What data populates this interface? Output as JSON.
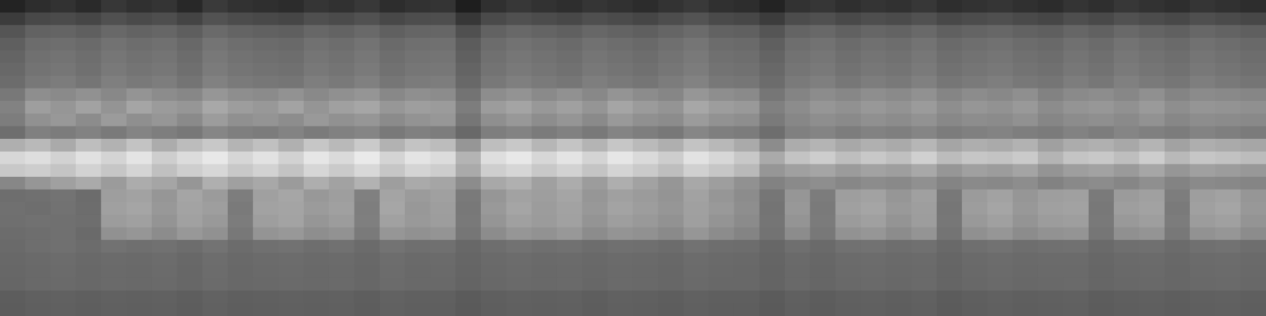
{
  "chart_data": {
    "type": "heatmap",
    "tick_labels": false,
    "color_range": [
      0,
      255
    ],
    "cells": [
      [
        35,
        45,
        50,
        42,
        55,
        48,
        52,
        40,
        58,
        50,
        47,
        44,
        53,
        49,
        56,
        45,
        50,
        52,
        30,
        48,
        55,
        50,
        46,
        53,
        49,
        44,
        51,
        57,
        48,
        45,
        35,
        50,
        54,
        47,
        52,
        49,
        55,
        46,
        50,
        53,
        48,
        44,
        52,
        47,
        55,
        50,
        46,
        53,
        49,
        45
      ],
      [
        60,
        72,
        75,
        70,
        80,
        74,
        78,
        68,
        82,
        76,
        73,
        70,
        79,
        75,
        81,
        72,
        77,
        78,
        55,
        74,
        80,
        76,
        72,
        79,
        75,
        70,
        77,
        83,
        74,
        71,
        60,
        76,
        80,
        73,
        78,
        75,
        81,
        72,
        76,
        79,
        74,
        70,
        78,
        73,
        81,
        76,
        72,
        79,
        75,
        71
      ],
      [
        85,
        98,
        100,
        95,
        104,
        99,
        102,
        94,
        106,
        100,
        97,
        95,
        103,
        99,
        105,
        96,
        101,
        102,
        80,
        98,
        104,
        100,
        96,
        103,
        99,
        95,
        101,
        107,
        98,
        96,
        85,
        100,
        104,
        97,
        102,
        99,
        105,
        96,
        100,
        103,
        98,
        95,
        102,
        97,
        105,
        100,
        96,
        103,
        99,
        95
      ],
      [
        95,
        108,
        110,
        106,
        114,
        109,
        112,
        104,
        116,
        110,
        107,
        105,
        113,
        109,
        115,
        106,
        111,
        112,
        92,
        108,
        114,
        110,
        106,
        113,
        109,
        105,
        111,
        117,
        108,
        106,
        95,
        110,
        114,
        107,
        112,
        109,
        115,
        106,
        110,
        113,
        108,
        105,
        112,
        107,
        115,
        110,
        106,
        113,
        109,
        105
      ],
      [
        100,
        112,
        115,
        110,
        118,
        113,
        116,
        108,
        120,
        114,
        111,
        109,
        117,
        113,
        119,
        110,
        115,
        116,
        96,
        112,
        118,
        114,
        110,
        117,
        113,
        109,
        115,
        121,
        112,
        110,
        100,
        114,
        118,
        111,
        116,
        113,
        119,
        110,
        114,
        117,
        112,
        109,
        116,
        111,
        119,
        114,
        110,
        117,
        113,
        109
      ],
      [
        104,
        115,
        118,
        112,
        121,
        116,
        119,
        111,
        123,
        117,
        114,
        112,
        120,
        116,
        122,
        113,
        118,
        119,
        100,
        115,
        121,
        117,
        113,
        120,
        116,
        112,
        118,
        124,
        115,
        113,
        104,
        117,
        121,
        114,
        119,
        116,
        122,
        113,
        117,
        120,
        115,
        112,
        119,
        114,
        122,
        117,
        113,
        120,
        116,
        112
      ],
      [
        108,
        120,
        124,
        117,
        127,
        121,
        125,
        116,
        129,
        122,
        119,
        117,
        126,
        121,
        128,
        118,
        123,
        125,
        104,
        120,
        127,
        122,
        118,
        126,
        121,
        117,
        124,
        130,
        120,
        118,
        108,
        122,
        127,
        119,
        125,
        121,
        128,
        118,
        122,
        126,
        120,
        117,
        125,
        119,
        128,
        122,
        118,
        126,
        121,
        117
      ],
      [
        120,
        142,
        138,
        145,
        136,
        148,
        140,
        135,
        150,
        142,
        139,
        146,
        137,
        144,
        149,
        136,
        143,
        140,
        115,
        141,
        147,
        138,
        145,
        136,
        148,
        140,
        134,
        150,
        142,
        138,
        118,
        132,
        140,
        135,
        142,
        138,
        145,
        133,
        140,
        136,
        143,
        130,
        138,
        141,
        135,
        144,
        132,
        139,
        137,
        134
      ],
      [
        130,
        158,
        150,
        162,
        148,
        165,
        155,
        150,
        168,
        157,
        152,
        163,
        149,
        160,
        166,
        151,
        158,
        155,
        125,
        156,
        164,
        152,
        160,
        149,
        165,
        155,
        148,
        167,
        157,
        153,
        128,
        140,
        150,
        145,
        152,
        147,
        155,
        142,
        150,
        146,
        153,
        140,
        148,
        151,
        145,
        154,
        142,
        149,
        147,
        144
      ],
      [
        125,
        145,
        152,
        140,
        155,
        143,
        150,
        138,
        156,
        144,
        148,
        141,
        153,
        145,
        150,
        139,
        147,
        151,
        118,
        143,
        152,
        141,
        149,
        138,
        153,
        144,
        140,
        155,
        146,
        142,
        122,
        135,
        142,
        138,
        144,
        140,
        146,
        136,
        141,
        139,
        145,
        134,
        140,
        143,
        138,
        146,
        135,
        141,
        139,
        137
      ],
      [
        110,
        128,
        124,
        130,
        122,
        132,
        126,
        120,
        134,
        127,
        124,
        131,
        123,
        129,
        133,
        121,
        128,
        125,
        105,
        126,
        131,
        123,
        129,
        121,
        132,
        126,
        120,
        134,
        127,
        124,
        110,
        128,
        132,
        125,
        130,
        127,
        133,
        124,
        128,
        131,
        126,
        123,
        130,
        125,
        133,
        128,
        124,
        131,
        127,
        123
      ],
      [
        175,
        185,
        170,
        190,
        178,
        195,
        172,
        188,
        200,
        180,
        192,
        176,
        198,
        185,
        202,
        178,
        195,
        188,
        150,
        190,
        200,
        182,
        196,
        180,
        198,
        186,
        175,
        195,
        184,
        170,
        140,
        172,
        180,
        168,
        176,
        170,
        182,
        165,
        174,
        170,
        178,
        160,
        172,
        176,
        168,
        180,
        162,
        174,
        170,
        166
      ],
      [
        215,
        222,
        210,
        225,
        212,
        228,
        206,
        220,
        232,
        214,
        226,
        210,
        230,
        218,
        234,
        212,
        228,
        220,
        180,
        222,
        232,
        215,
        228,
        212,
        230,
        218,
        205,
        226,
        215,
        200,
        170,
        195,
        205,
        190,
        200,
        192,
        208,
        188,
        198,
        195,
        202,
        180,
        196,
        200,
        190,
        205,
        185,
        198,
        194,
        188
      ],
      [
        200,
        205,
        196,
        210,
        198,
        212,
        192,
        206,
        215,
        200,
        210,
        195,
        214,
        202,
        216,
        198,
        212,
        205,
        170,
        206,
        214,
        200,
        210,
        196,
        212,
        202,
        190,
        208,
        198,
        185,
        150,
        160,
        165,
        155,
        162,
        158,
        168,
        150,
        160,
        156,
        164,
        148,
        158,
        162,
        154,
        166,
        150,
        160,
        156,
        152
      ],
      [
        135,
        150,
        160,
        170,
        155,
        172,
        165,
        150,
        175,
        160,
        168,
        155,
        174,
        162,
        178,
        158,
        170,
        165,
        140,
        168,
        176,
        160,
        172,
        156,
        174,
        162,
        150,
        168,
        158,
        145,
        130,
        138,
        142,
        135,
        140,
        137,
        144,
        132,
        138,
        136,
        141,
        130,
        137,
        140,
        134,
        143,
        131,
        138,
        136,
        133
      ],
      [
        110,
        112,
        115,
        108,
        158,
        162,
        150,
        165,
        155,
        125,
        160,
        166,
        152,
        158,
        128,
        164,
        155,
        160,
        122,
        150,
        162,
        158,
        165,
        150,
        160,
        155,
        148,
        162,
        150,
        140,
        118,
        150,
        124,
        158,
        162,
        150,
        160,
        120,
        155,
        162,
        150,
        158,
        160,
        122,
        155,
        160,
        125,
        158,
        162,
        150
      ],
      [
        112,
        110,
        114,
        109,
        160,
        165,
        152,
        163,
        158,
        122,
        162,
        164,
        155,
        160,
        126,
        166,
        152,
        158,
        120,
        153,
        165,
        156,
        162,
        152,
        163,
        157,
        150,
        160,
        153,
        142,
        116,
        152,
        122,
        160,
        165,
        153,
        158,
        118,
        157,
        165,
        152,
        160,
        162,
        120,
        158,
        162,
        122,
        160,
        165,
        152
      ],
      [
        111,
        113,
        112,
        110,
        156,
        160,
        148,
        161,
        153,
        124,
        158,
        163,
        150,
        156,
        127,
        161,
        153,
        157,
        121,
        149,
        160,
        155,
        161,
        148,
        158,
        153,
        146,
        159,
        148,
        139,
        117,
        148,
        123,
        155,
        160,
        148,
        157,
        119,
        153,
        160,
        148,
        156,
        158,
        121,
        153,
        158,
        124,
        156,
        160,
        148
      ],
      [
        108,
        110,
        112,
        106,
        145,
        150,
        140,
        152,
        145,
        120,
        148,
        152,
        142,
        146,
        122,
        150,
        145,
        148,
        118,
        140,
        150,
        146,
        152,
        140,
        148,
        145,
        138,
        150,
        140,
        132,
        115,
        140,
        120,
        146,
        150,
        140,
        148,
        116,
        144,
        150,
        140,
        146,
        148,
        118,
        144,
        148,
        120,
        146,
        150,
        140
      ],
      [
        106,
        110,
        112,
        108,
        114,
        111,
        113,
        109,
        115,
        108,
        112,
        114,
        110,
        113,
        107,
        115,
        111,
        112,
        104,
        110,
        114,
        111,
        113,
        109,
        112,
        111,
        108,
        114,
        110,
        109,
        103,
        111,
        106,
        113,
        114,
        110,
        112,
        105,
        111,
        114,
        110,
        112,
        113,
        106,
        111,
        112,
        107,
        112,
        114,
        110
      ],
      [
        104,
        106,
        108,
        105,
        107,
        106,
        108,
        104,
        109,
        105,
        107,
        108,
        106,
        107,
        104,
        109,
        106,
        107,
        102,
        106,
        108,
        106,
        107,
        105,
        107,
        106,
        104,
        108,
        106,
        105,
        101,
        106,
        103,
        107,
        108,
        106,
        107,
        102,
        106,
        108,
        106,
        107,
        107,
        103,
        106,
        107,
        104,
        107,
        108,
        106
      ],
      [
        103,
        105,
        107,
        104,
        106,
        105,
        107,
        103,
        108,
        104,
        106,
        107,
        105,
        106,
        103,
        108,
        105,
        106,
        101,
        105,
        107,
        105,
        106,
        104,
        106,
        105,
        103,
        107,
        105,
        104,
        100,
        105,
        102,
        106,
        107,
        105,
        106,
        101,
        105,
        107,
        105,
        106,
        106,
        102,
        105,
        106,
        103,
        106,
        107,
        105
      ],
      [
        102,
        105,
        106,
        104,
        106,
        105,
        106,
        103,
        107,
        104,
        105,
        106,
        105,
        106,
        103,
        107,
        105,
        105,
        100,
        104,
        106,
        105,
        106,
        103,
        106,
        105,
        103,
        106,
        104,
        104,
        100,
        105,
        102,
        105,
        106,
        104,
        106,
        101,
        104,
        106,
        104,
        105,
        106,
        102,
        104,
        105,
        103,
        105,
        106,
        104
      ],
      [
        93,
        96,
        97,
        95,
        97,
        96,
        97,
        94,
        98,
        95,
        96,
        97,
        96,
        97,
        94,
        98,
        96,
        96,
        91,
        95,
        97,
        96,
        97,
        94,
        97,
        96,
        94,
        97,
        95,
        95,
        91,
        96,
        93,
        96,
        97,
        95,
        97,
        92,
        95,
        97,
        95,
        96,
        97,
        93,
        95,
        96,
        94,
        96,
        97,
        95
      ],
      [
        92,
        95,
        96,
        94,
        96,
        95,
        96,
        93,
        97,
        94,
        95,
        96,
        95,
        96,
        93,
        97,
        95,
        95,
        90,
        94,
        96,
        95,
        96,
        93,
        96,
        95,
        93,
        96,
        94,
        94,
        90,
        95,
        92,
        95,
        96,
        94,
        96,
        91,
        94,
        96,
        94,
        95,
        96,
        92,
        94,
        95,
        93,
        95,
        96,
        94
      ]
    ]
  }
}
